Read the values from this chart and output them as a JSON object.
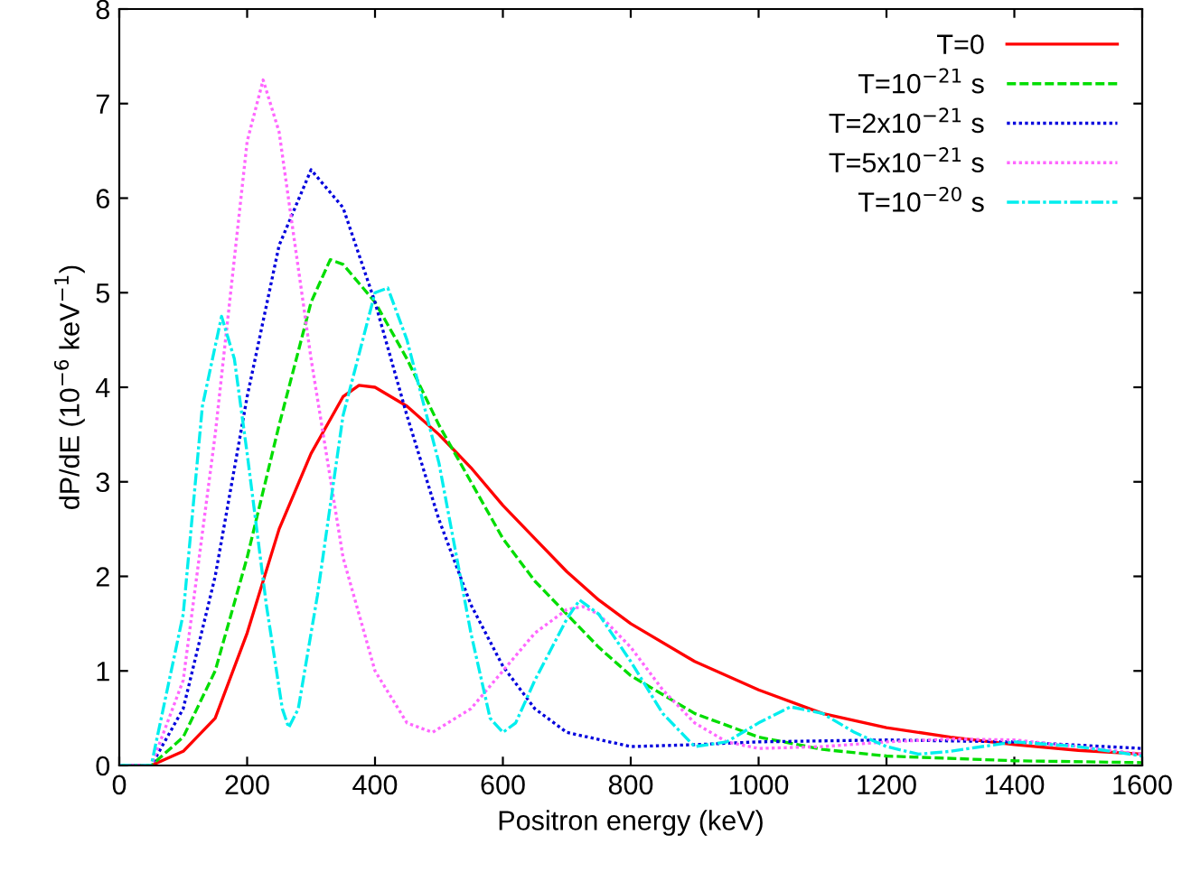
{
  "chart_data": {
    "type": "line",
    "xlabel": "Positron energy (keV)",
    "ylabel": "dP/dE (10$^{−6}$ keV$^{−1}$)",
    "xlim": [
      0,
      1600
    ],
    "xticks": [
      0,
      200,
      400,
      600,
      800,
      1000,
      1200,
      1400,
      1600
    ],
    "ylim": [
      0,
      8
    ],
    "yticks": [
      0,
      1,
      2,
      3,
      4,
      5,
      6,
      7,
      8
    ],
    "grid": false,
    "legend": "top right",
    "marker": "none",
    "series": [
      {
        "name": "T=0",
        "color": "#ff0000",
        "line_style": "solid",
        "x": [
          0,
          50,
          100,
          150,
          200,
          250,
          300,
          350,
          375,
          400,
          450,
          500,
          550,
          600,
          650,
          700,
          750,
          800,
          900,
          1000,
          1100,
          1200,
          1300,
          1400,
          1500,
          1600
        ],
        "values": [
          0,
          0,
          0.15,
          0.5,
          1.4,
          2.5,
          3.3,
          3.9,
          4.02,
          4.0,
          3.8,
          3.5,
          3.15,
          2.75,
          2.4,
          2.05,
          1.75,
          1.5,
          1.1,
          0.8,
          0.55,
          0.4,
          0.3,
          0.22,
          0.16,
          0.12
        ]
      },
      {
        "name": "T=10$^{−21}$ s",
        "color": "#00dd00",
        "line_style": "dashed",
        "x": [
          0,
          50,
          100,
          150,
          200,
          250,
          300,
          330,
          350,
          400,
          450,
          500,
          550,
          600,
          650,
          700,
          750,
          800,
          900,
          1000,
          1100,
          1200,
          1400,
          1600
        ],
        "values": [
          0,
          0,
          0.3,
          1.0,
          2.2,
          3.6,
          4.9,
          5.35,
          5.3,
          4.9,
          4.3,
          3.6,
          3.0,
          2.4,
          1.95,
          1.6,
          1.25,
          0.95,
          0.55,
          0.3,
          0.17,
          0.1,
          0.05,
          0.03
        ]
      },
      {
        "name": "T=2x10$^{−21}$ s",
        "color": "#0000dd",
        "line_style": "dotted",
        "x": [
          0,
          50,
          100,
          150,
          200,
          250,
          300,
          350,
          400,
          450,
          500,
          550,
          600,
          650,
          700,
          800,
          900,
          1000,
          1200,
          1400,
          1600
        ],
        "values": [
          0,
          0,
          0.6,
          2.0,
          3.9,
          5.5,
          6.3,
          5.9,
          4.9,
          3.7,
          2.6,
          1.7,
          1.05,
          0.6,
          0.35,
          0.2,
          0.22,
          0.25,
          0.27,
          0.25,
          0.18
        ]
      },
      {
        "name": "T=5x10$^{−21}$ s",
        "color": "#ff66ff",
        "line_style": "dotted",
        "x": [
          0,
          50,
          100,
          150,
          200,
          225,
          250,
          300,
          350,
          400,
          450,
          490,
          550,
          600,
          650,
          700,
          725,
          750,
          800,
          850,
          900,
          950,
          1000,
          1100,
          1200,
          1300,
          1400,
          1500,
          1600
        ],
        "values": [
          0,
          0,
          0.9,
          3.5,
          6.6,
          7.25,
          6.7,
          4.3,
          2.2,
          1.0,
          0.45,
          0.35,
          0.6,
          1.0,
          1.4,
          1.65,
          1.68,
          1.6,
          1.25,
          0.8,
          0.45,
          0.25,
          0.18,
          0.2,
          0.25,
          0.28,
          0.27,
          0.2,
          0.12
        ]
      },
      {
        "name": "T=10$^{−20}$ s",
        "color": "#00eeee",
        "line_style": "dashdot",
        "x": [
          0,
          50,
          100,
          130,
          160,
          180,
          200,
          230,
          255,
          265,
          280,
          310,
          350,
          400,
          420,
          450,
          500,
          550,
          580,
          600,
          620,
          650,
          700,
          720,
          750,
          800,
          850,
          900,
          950,
          1000,
          1050,
          1100,
          1150,
          1200,
          1250,
          1300,
          1400,
          1500,
          1600
        ],
        "values": [
          0,
          0,
          1.6,
          3.8,
          4.75,
          4.3,
          3.3,
          1.7,
          0.6,
          0.4,
          0.6,
          1.8,
          3.7,
          5.0,
          5.05,
          4.5,
          3.2,
          1.4,
          0.5,
          0.35,
          0.45,
          0.9,
          1.55,
          1.75,
          1.6,
          1.1,
          0.55,
          0.2,
          0.25,
          0.45,
          0.62,
          0.55,
          0.35,
          0.2,
          0.12,
          0.15,
          0.25,
          0.2,
          0.1
        ]
      }
    ]
  }
}
